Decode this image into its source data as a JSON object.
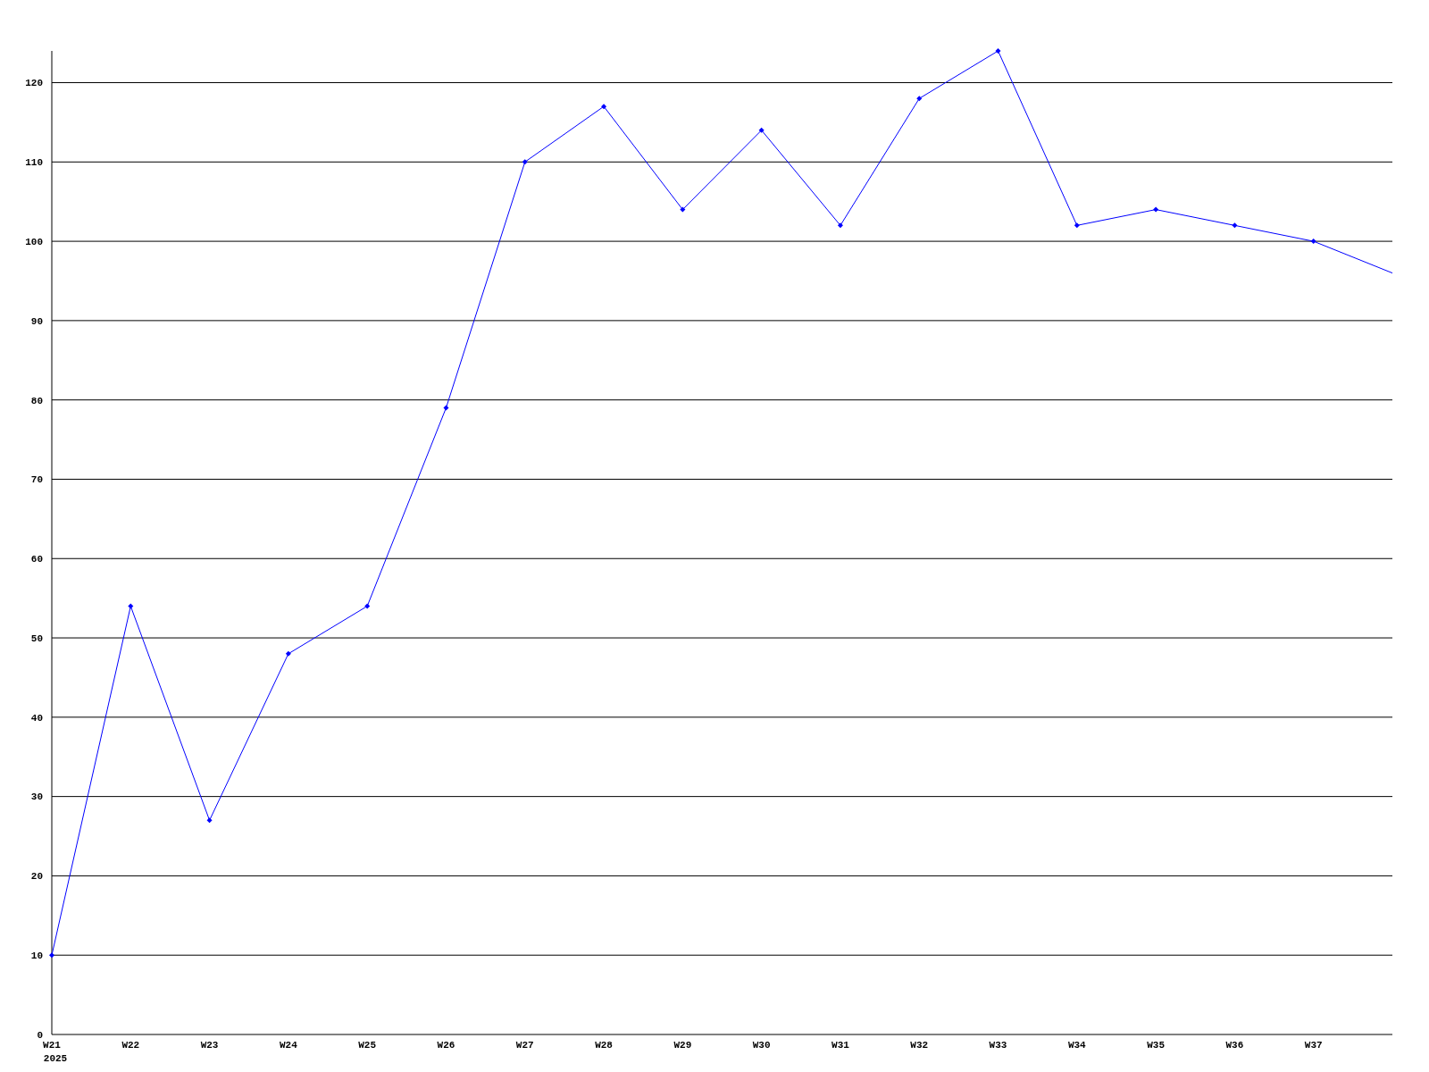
{
  "chart_data": {
    "type": "line",
    "categories": [
      "W21",
      "W22",
      "W23",
      "W24",
      "W25",
      "W26",
      "W27",
      "W28",
      "W29",
      "W30",
      "W31",
      "W32",
      "W33",
      "W34",
      "W35",
      "W36",
      "W37",
      null
    ],
    "series": [
      {
        "color": "#0000ff",
        "values": [
          10,
          54,
          27,
          48,
          54,
          79,
          110,
          117,
          104,
          114,
          102,
          118,
          124,
          102,
          104,
          102,
          100,
          96
        ]
      }
    ],
    "ylim": [
      0,
      124
    ],
    "yticks": [
      0,
      10,
      20,
      30,
      40,
      50,
      60,
      70,
      80,
      90,
      100,
      110,
      120
    ],
    "grid": "y",
    "marker": "diamond",
    "line_style": "solid",
    "annotations": [
      "2025"
    ]
  }
}
